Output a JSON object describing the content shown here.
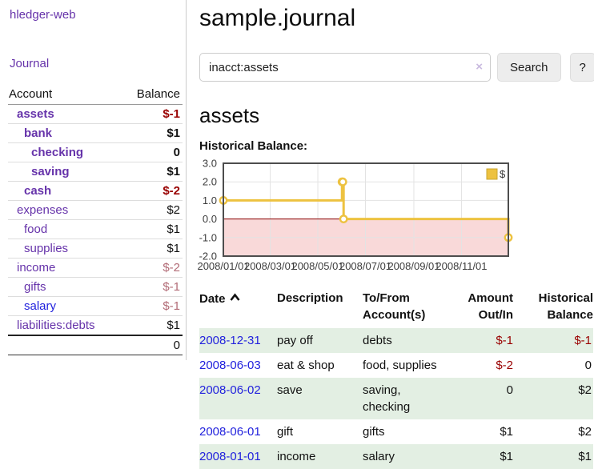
{
  "colors": {
    "purple_link": "#6633aa",
    "blue_link": "#2222dd",
    "neg_strong": "#990000",
    "neg_soft": "#b26b76",
    "row_green": "#e3efe3",
    "button_bg": "#ededed",
    "clear_icon": "#c9badf"
  },
  "app": {
    "brand": "hledger-web",
    "nav_journal": "Journal"
  },
  "sidebar": {
    "accounts_header": {
      "account": "Account",
      "balance": "Balance"
    },
    "accounts": [
      {
        "name": "assets",
        "depth": 1,
        "bold": true,
        "balance": "$-1",
        "balance_style": "neg-strong",
        "link_style": "purple"
      },
      {
        "name": "bank",
        "depth": 2,
        "bold": true,
        "balance": "$1",
        "balance_style": "",
        "link_style": "purple"
      },
      {
        "name": "checking",
        "depth": 3,
        "bold": true,
        "balance": "0",
        "balance_style": "",
        "link_style": "purple"
      },
      {
        "name": "saving",
        "depth": 3,
        "bold": true,
        "balance": "$1",
        "balance_style": "",
        "link_style": "purple"
      },
      {
        "name": "cash",
        "depth": 2,
        "bold": true,
        "balance": "$-2",
        "balance_style": "neg-strong",
        "link_style": "purple"
      },
      {
        "name": "expenses",
        "depth": 1,
        "bold": false,
        "balance": "$2",
        "balance_style": "",
        "link_style": "purple"
      },
      {
        "name": "food",
        "depth": 2,
        "bold": false,
        "balance": "$1",
        "balance_style": "",
        "link_style": "purple"
      },
      {
        "name": "supplies",
        "depth": 2,
        "bold": false,
        "balance": "$1",
        "balance_style": "",
        "link_style": "purple"
      },
      {
        "name": "income",
        "depth": 1,
        "bold": false,
        "balance": "$-2",
        "balance_style": "neg-soft",
        "link_style": "purple"
      },
      {
        "name": "gifts",
        "depth": 2,
        "bold": false,
        "balance": "$-1",
        "balance_style": "neg-soft",
        "link_style": "purple"
      },
      {
        "name": "salary",
        "depth": 2,
        "bold": false,
        "balance": "$-1",
        "balance_style": "neg-soft",
        "link_style": "blue"
      },
      {
        "name": "liabilities:debts",
        "depth": 1,
        "bold": false,
        "balance": "$1",
        "balance_style": "",
        "link_style": "purple"
      }
    ],
    "total": "0"
  },
  "header": {
    "title": "sample.journal"
  },
  "search": {
    "value": "inacct:assets",
    "clear_icon": "×",
    "button": "Search",
    "help_button": "?"
  },
  "account_page": {
    "heading": "assets",
    "chart_label": "Historical Balance:"
  },
  "chart_data": {
    "type": "line",
    "step": true,
    "title": "Historical Balance",
    "xdomain": [
      "2008-01-01",
      "2008-12-31"
    ],
    "ylim": [
      -2,
      3
    ],
    "yticks": [
      -2,
      -1,
      0,
      1,
      2,
      3
    ],
    "ytick_labels": [
      "-2.0",
      "-1.0",
      "0.0",
      "1.0",
      "2.0",
      "3.0"
    ],
    "xticks": [
      "2008-01-01",
      "2008-03-01",
      "2008-05-01",
      "2008-07-01",
      "2008-09-01",
      "2008-11-01"
    ],
    "xtick_labels": [
      "2008/01/01",
      "2008/03/01",
      "2008/05/01",
      "2008/07/01",
      "2008/09/01",
      "2008/11/01"
    ],
    "series": [
      {
        "name": "$",
        "color": "#edc240",
        "points": [
          [
            "2008-01-01",
            1
          ],
          [
            "2008-06-01",
            2
          ],
          [
            "2008-06-02",
            2
          ],
          [
            "2008-06-03",
            0
          ],
          [
            "2008-12-31",
            -1
          ]
        ]
      }
    ],
    "legend": {
      "label": "$",
      "swatch_color": "#edc240",
      "position": "top-right"
    },
    "grid": true,
    "grid_color": "#e3e3e3",
    "border_color": "#4d4d4d",
    "zero_line_color": "#8b0000",
    "negative_region_color": "#f9d9d9"
  },
  "register": {
    "columns": [
      {
        "line1": "Date",
        "line2": "",
        "align": "left",
        "sortable": true
      },
      {
        "line1": "Description",
        "line2": "",
        "align": "left"
      },
      {
        "line1": "To/From",
        "line2": "Account(s)",
        "align": "left"
      },
      {
        "line1": "Amount",
        "line2": "Out/In",
        "align": "right"
      },
      {
        "line1": "Historical",
        "line2": "Balance",
        "align": "right"
      }
    ],
    "rows": [
      {
        "date": "2008-12-31",
        "description": "pay off",
        "accounts": "debts",
        "amount": "$-1",
        "amount_style": "neg",
        "balance": "$-1",
        "balance_style": "neg",
        "shaded": true
      },
      {
        "date": "2008-06-03",
        "description": "eat & shop",
        "accounts": "food, supplies",
        "amount": "$-2",
        "amount_style": "neg",
        "balance": "0",
        "balance_style": "",
        "shaded": false
      },
      {
        "date": "2008-06-02",
        "description": "save",
        "accounts": "saving,\nchecking",
        "amount": "0",
        "amount_style": "",
        "balance": "$2",
        "balance_style": "",
        "shaded": true
      },
      {
        "date": "2008-06-01",
        "description": "gift",
        "accounts": "gifts",
        "amount": "$1",
        "amount_style": "",
        "balance": "$2",
        "balance_style": "",
        "shaded": false
      },
      {
        "date": "2008-01-01",
        "description": "income",
        "accounts": "salary",
        "amount": "$1",
        "amount_style": "",
        "balance": "$1",
        "balance_style": "",
        "shaded": true
      }
    ]
  }
}
